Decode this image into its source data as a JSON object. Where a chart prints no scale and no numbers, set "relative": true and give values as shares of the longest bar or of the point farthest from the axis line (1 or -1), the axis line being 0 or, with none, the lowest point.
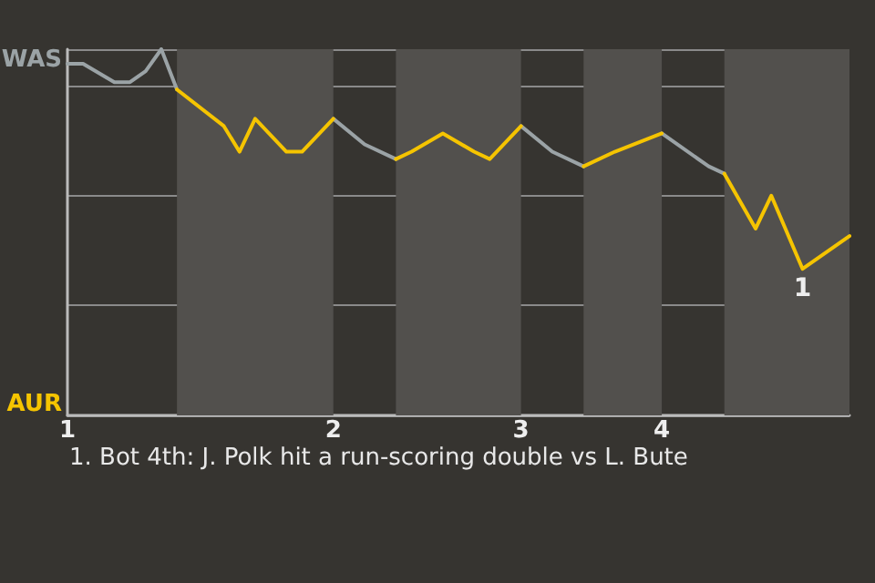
{
  "chart_data": {
    "type": "line",
    "relative": true,
    "categories": [
      "1",
      null,
      null,
      null,
      null,
      null,
      null,
      null,
      null,
      null,
      null,
      null,
      null,
      null,
      null,
      null,
      null,
      "2",
      null,
      null,
      null,
      null,
      null,
      null,
      null,
      null,
      null,
      null,
      null,
      "3",
      null,
      null,
      null,
      null,
      null,
      null,
      null,
      null,
      "4",
      null,
      null,
      null,
      null,
      null,
      null,
      null,
      null,
      null,
      null,
      null,
      null
    ],
    "series": [
      {
        "color": "#9ba3a6",
        "values": [
          0.96,
          0.96,
          null,
          0.91,
          0.91,
          0.94,
          1,
          0.89,
          null,
          null,
          null,
          null,
          null,
          null,
          null,
          null,
          null,
          0.81,
          null,
          0.74,
          null,
          0.7,
          null,
          null,
          null,
          null,
          null,
          null,
          null,
          0.79,
          null,
          0.72,
          null,
          0.68,
          null,
          null,
          null,
          null,
          0.77,
          null,
          null,
          0.68,
          0.66,
          null,
          null,
          null,
          null,
          null,
          null,
          null,
          null
        ]
      },
      {
        "color": "#f5c400",
        "values": [
          null,
          null,
          null,
          null,
          null,
          null,
          null,
          0.89,
          null,
          null,
          0.79,
          0.72,
          0.81,
          null,
          0.72,
          0.72,
          null,
          0.81,
          null,
          null,
          null,
          0.7,
          0.72,
          null,
          0.77,
          null,
          0.72,
          0.7,
          null,
          0.79,
          null,
          null,
          null,
          0.68,
          null,
          0.72,
          null,
          null,
          0.77,
          null,
          null,
          null,
          0.66,
          null,
          0.51,
          0.6,
          null,
          0.4,
          null,
          null,
          0.49
        ]
      }
    ],
    "annotations": [
      "WAS",
      "AUR",
      {
        "text": "1",
        "y": 0.4
      },
      "1. Bot 4th: J. Polk hit a run-scoring double vs L. Bute"
    ],
    "grid": "y",
    "marker": "none",
    "line_style": "solid"
  }
}
